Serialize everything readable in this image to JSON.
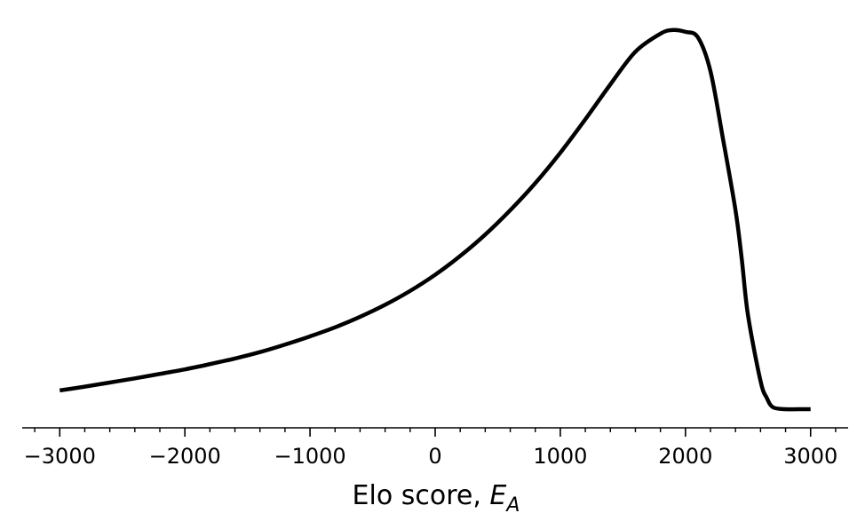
{
  "chart_data": {
    "type": "line",
    "title": "",
    "xlabel": "Elo score, ",
    "xlabel_math": "E",
    "xlabel_subscript": "A",
    "ylabel": "",
    "xlim": [
      -3300,
      3300
    ],
    "ylim": [
      0,
      1
    ],
    "x_ticks": [
      -3000,
      -2000,
      -1000,
      0,
      1000,
      2000,
      3000
    ],
    "x_tick_labels": [
      "−3000",
      "−2000",
      "−1000",
      "0",
      "1000",
      "2000",
      "3000"
    ],
    "x_minor_step": 200,
    "y_axis_visible": false,
    "grid": false,
    "legend": "none",
    "line_color": "#000000",
    "series": [
      {
        "x": [
          -3000,
          -2800,
          -2600,
          -2400,
          -2200,
          -2000,
          -1800,
          -1600,
          -1400,
          -1200,
          -1000,
          -800,
          -600,
          -400,
          -200,
          0,
          200,
          400,
          600,
          800,
          1000,
          1200,
          1400,
          1600,
          1800,
          1900,
          2000,
          2100,
          2200,
          2300,
          2400,
          2450,
          2500,
          2600,
          2650,
          2700,
          2800,
          2900,
          3000
        ],
        "y": [
          0.05,
          0.06,
          0.071,
          0.082,
          0.094,
          0.106,
          0.12,
          0.135,
          0.152,
          0.172,
          0.194,
          0.218,
          0.246,
          0.278,
          0.315,
          0.358,
          0.408,
          0.465,
          0.53,
          0.602,
          0.683,
          0.772,
          0.865,
          0.952,
          1.0,
          1.01,
          1.005,
          0.99,
          0.9,
          0.72,
          0.53,
          0.4,
          0.25,
          0.075,
          0.03,
          0.005,
          0.0,
          0.0,
          0.0
        ]
      }
    ]
  }
}
